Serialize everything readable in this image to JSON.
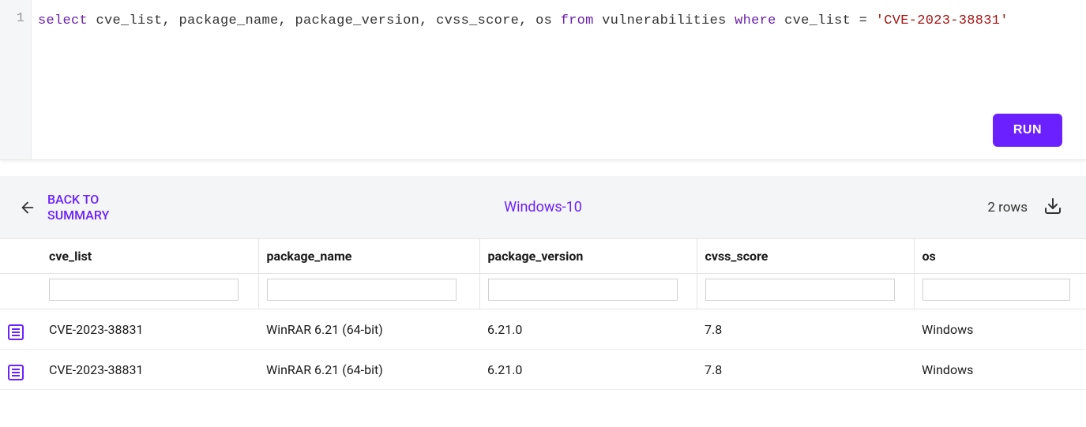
{
  "colors": {
    "accent": "#6b21ff",
    "keyword": "#6b21a8",
    "string": "#a31515",
    "text": "#1a1a1a",
    "gutter_bg": "#f5f6f7",
    "toolbar_bg": "#f4f5f6",
    "border": "#e5e5e5"
  },
  "editor": {
    "line_number": "1",
    "tokens": [
      {
        "t": "select ",
        "c": "kw"
      },
      {
        "t": "cve_list, package_name, package_version, cvss_score, os ",
        "c": "ident"
      },
      {
        "t": "from ",
        "c": "kw"
      },
      {
        "t": "vulnerabilities ",
        "c": "ident"
      },
      {
        "t": "where ",
        "c": "kw"
      },
      {
        "t": "cve_list = ",
        "c": "ident"
      },
      {
        "t": "'CVE-2023-38831'",
        "c": "str"
      }
    ],
    "run_label": "RUN"
  },
  "toolbar": {
    "back_label_line1": "BACK TO",
    "back_label_line2": "SUMMARY",
    "title": "Windows-10",
    "row_count": "2 rows"
  },
  "table": {
    "columns": [
      "cve_list",
      "package_name",
      "package_version",
      "cvss_score",
      "os"
    ],
    "col_widths": [
      "275px",
      "280px",
      "275px",
      "275px",
      "auto"
    ],
    "rows": [
      [
        "CVE-2023-38831",
        "WinRAR 6.21 (64-bit)",
        "6.21.0",
        "7.8",
        "Windows"
      ],
      [
        "CVE-2023-38831",
        "WinRAR 6.21 (64-bit)",
        "6.21.0",
        "7.8",
        "Windows"
      ]
    ]
  }
}
